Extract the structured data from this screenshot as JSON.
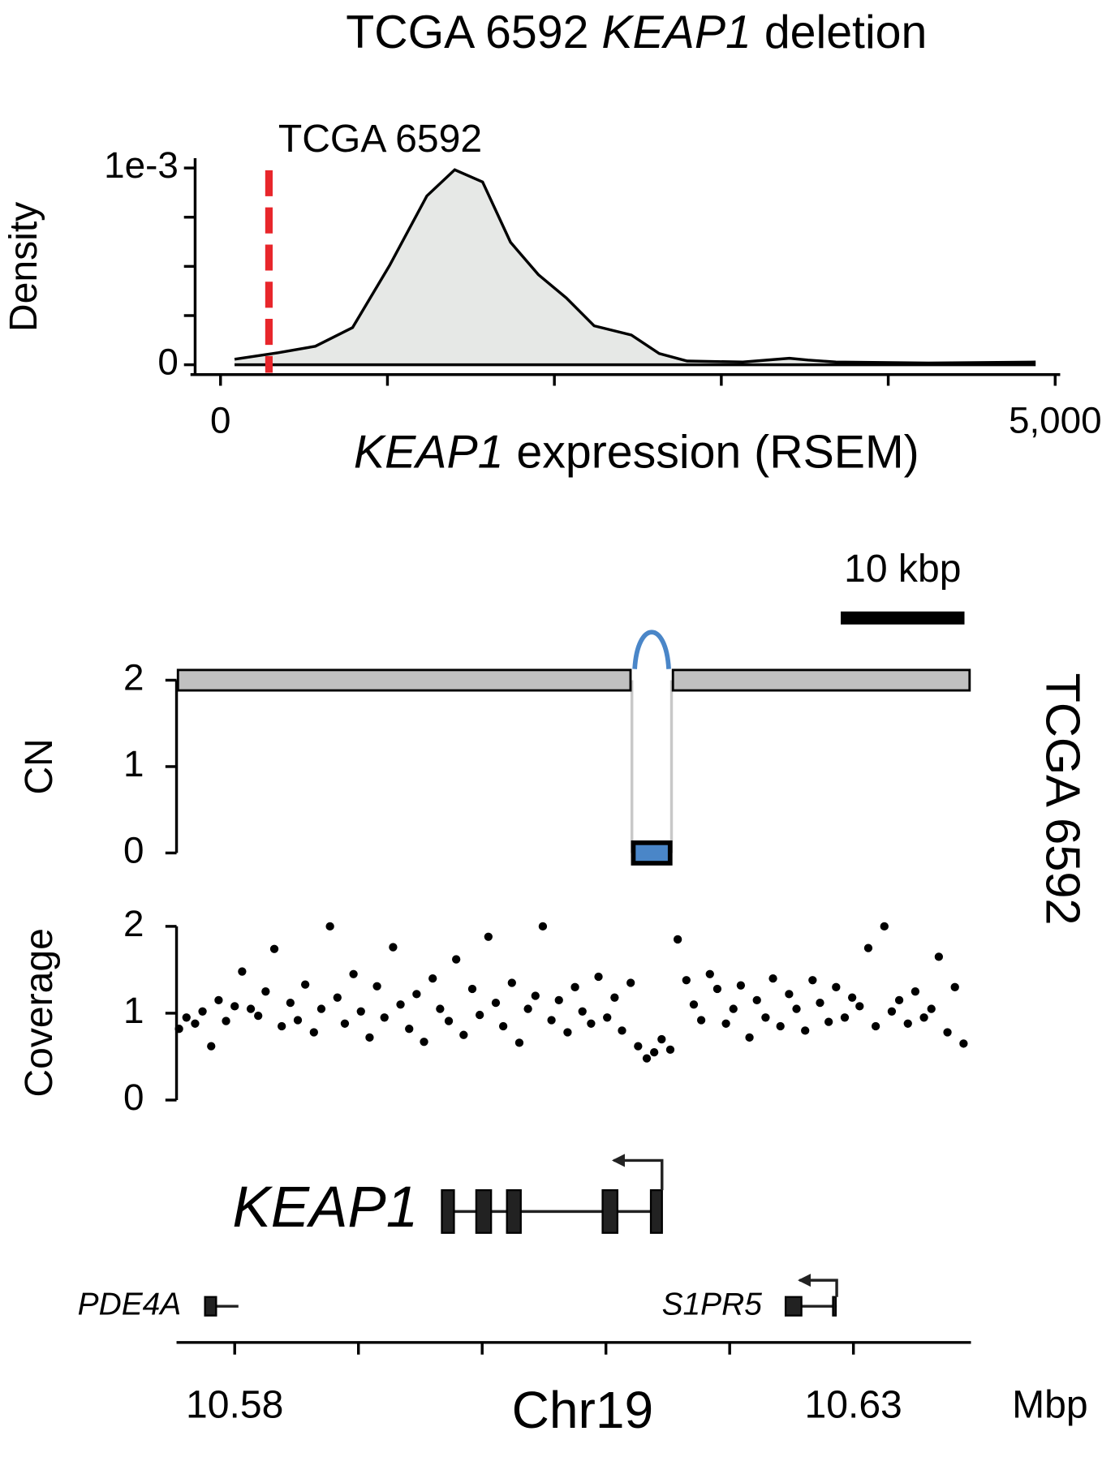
{
  "chart_data": [
    {
      "type": "density",
      "title": {
        "sample": "TCGA 6592",
        "gene": "KEAP1",
        "rest": "deletion"
      },
      "x_label": {
        "gene": "KEAP1",
        "rest": "expression (RSEM)"
      },
      "y_label": "Density",
      "x": [
        84,
        345,
        568,
        791,
        1013,
        1236,
        1403,
        1570,
        1737,
        1904,
        2071,
        2238,
        2461,
        2628,
        2795,
        3129,
        3408,
        3519,
        3686,
        4243,
        4883
      ],
      "values": [
        2.8e-05,
        6.1e-05,
        9.4e-05,
        0.000189,
        0.000505,
        0.000858,
        0.000991,
        0.000929,
        0.000623,
        0.000458,
        0.00034,
        0.000198,
        0.000151,
        5.7e-05,
        1.9e-05,
        1.4e-05,
        3.3e-05,
        2.4e-05,
        1.4e-05,
        9e-06,
        1.4e-05
      ],
      "color": "#e6e8e6",
      "line_color": "#000000",
      "xlim": [
        -180,
        5030
      ],
      "xticks": [
        0,
        {
          "value": 5000,
          "label": "5,000"
        }
      ],
      "xminor_ticks": [
        1000,
        2000,
        3000,
        4000
      ],
      "ylim": [
        -5e-05,
        0.00105
      ],
      "yticks": [
        0,
        {
          "value": 0.001,
          "label": "1e-3"
        }
      ],
      "yminor_ticks": [
        0.00025,
        0.0005,
        0.00075
      ],
      "marker": {
        "x": 290,
        "label": "TCGA 6592",
        "color": "#e8262b"
      }
    },
    {
      "type": "genome",
      "sample": "TCGA 6592",
      "x_label": "Chr19",
      "x_unit": "Mbp",
      "xlim": [
        10.5753,
        10.6395
      ],
      "xticks": [
        10.58,
        10.63
      ],
      "xminor_ticks": [
        10.59,
        10.6,
        10.61,
        10.62
      ],
      "scale_bar": {
        "length": 0.01,
        "label": "10 kbp"
      },
      "cn": {
        "y_label": "CN",
        "ylim": [
          0,
          2
        ],
        "yticks": [
          0,
          1,
          2
        ],
        "segments": [
          {
            "start": 10.5753,
            "end": 10.6121,
            "value": 2,
            "color": "#c0c0c0"
          },
          {
            "start": 10.6121,
            "end": 10.6153,
            "value": 0,
            "color": "#4a86c8"
          },
          {
            "start": 10.6153,
            "end": 10.6395,
            "value": 2,
            "color": "#c0c0c0"
          }
        ]
      },
      "coverage": {
        "y_label": "Coverage",
        "ylim": [
          0,
          2
        ],
        "yticks": [
          0,
          1,
          2
        ],
        "color": "#000000",
        "x": [
          10.5755,
          10.5761,
          10.5768,
          10.5774,
          10.5781,
          10.5787,
          10.5793,
          10.58,
          10.5806,
          10.5813,
          10.5819,
          10.5825,
          10.5832,
          10.5838,
          10.5845,
          10.5851,
          10.5857,
          10.5864,
          10.587,
          10.5877,
          10.5883,
          10.5889,
          10.5896,
          10.5902,
          10.5909,
          10.5915,
          10.5921,
          10.5928,
          10.5934,
          10.5941,
          10.5947,
          10.5953,
          10.596,
          10.5966,
          10.5973,
          10.5979,
          10.5985,
          10.5992,
          10.5998,
          10.6005,
          10.6011,
          10.6017,
          10.6024,
          10.603,
          10.6037,
          10.6043,
          10.6049,
          10.6056,
          10.6062,
          10.6069,
          10.6075,
          10.6081,
          10.6088,
          10.6094,
          10.6101,
          10.6107,
          10.6113,
          10.612,
          10.6126,
          10.6133,
          10.6139,
          10.6145,
          10.6152,
          10.6158,
          10.6165,
          10.6171,
          10.6177,
          10.6184,
          10.619,
          10.6197,
          10.6203,
          10.6209,
          10.6216,
          10.6222,
          10.6229,
          10.6235,
          10.6241,
          10.6248,
          10.6254,
          10.6261,
          10.6267,
          10.6273,
          10.628,
          10.6286,
          10.6293,
          10.6299,
          10.6305,
          10.6312,
          10.6318,
          10.6325,
          10.6331,
          10.6337,
          10.6344,
          10.635,
          10.6357,
          10.6363,
          10.6369,
          10.6376,
          10.6382,
          10.6389
        ],
        "values": [
          0.82,
          0.95,
          0.88,
          1.02,
          0.62,
          1.15,
          0.91,
          1.08,
          1.48,
          1.05,
          0.97,
          1.25,
          1.74,
          0.85,
          1.12,
          0.92,
          1.33,
          0.78,
          1.05,
          2.0,
          1.18,
          0.88,
          1.45,
          1.02,
          0.72,
          1.31,
          0.95,
          1.76,
          1.1,
          0.82,
          1.22,
          0.67,
          1.4,
          1.05,
          0.91,
          1.62,
          0.75,
          1.28,
          0.98,
          1.88,
          1.12,
          0.85,
          1.35,
          0.66,
          1.05,
          1.2,
          2.0,
          0.92,
          1.15,
          0.78,
          1.3,
          1.02,
          0.88,
          1.42,
          0.95,
          1.18,
          0.8,
          1.35,
          0.62,
          0.48,
          0.55,
          0.7,
          0.58,
          1.85,
          1.38,
          1.1,
          0.92,
          1.45,
          1.28,
          0.88,
          1.05,
          1.32,
          0.72,
          1.15,
          0.95,
          1.4,
          0.85,
          1.22,
          1.05,
          0.8,
          1.38,
          1.12,
          0.9,
          1.3,
          0.95,
          1.18,
          1.08,
          1.75,
          0.85,
          2.0,
          1.02,
          1.15,
          0.88,
          1.25,
          0.95,
          1.05,
          1.65,
          0.78,
          1.3,
          0.65
        ]
      },
      "genes": [
        {
          "name": "KEAP1",
          "strand": "-",
          "start": 10.59674,
          "end": 10.61453,
          "exons": [
            [
              10.59674,
              10.59772
            ],
            [
              10.59952,
              10.60072
            ],
            [
              10.602,
              10.60312
            ],
            [
              10.60973,
              10.61093
            ],
            [
              10.61363,
              10.61453
            ]
          ]
        },
        {
          "name": "PDE4A",
          "start": 10.5776,
          "end": 10.5803,
          "exons": [
            [
              10.5776,
              10.5785
            ]
          ]
        },
        {
          "name": "S1PR5",
          "strand": "-",
          "start": 10.62452,
          "end": 10.62865,
          "exons": [
            [
              10.62452,
              10.6258
            ],
            [
              10.62835,
              10.6285
            ]
          ]
        }
      ]
    }
  ]
}
